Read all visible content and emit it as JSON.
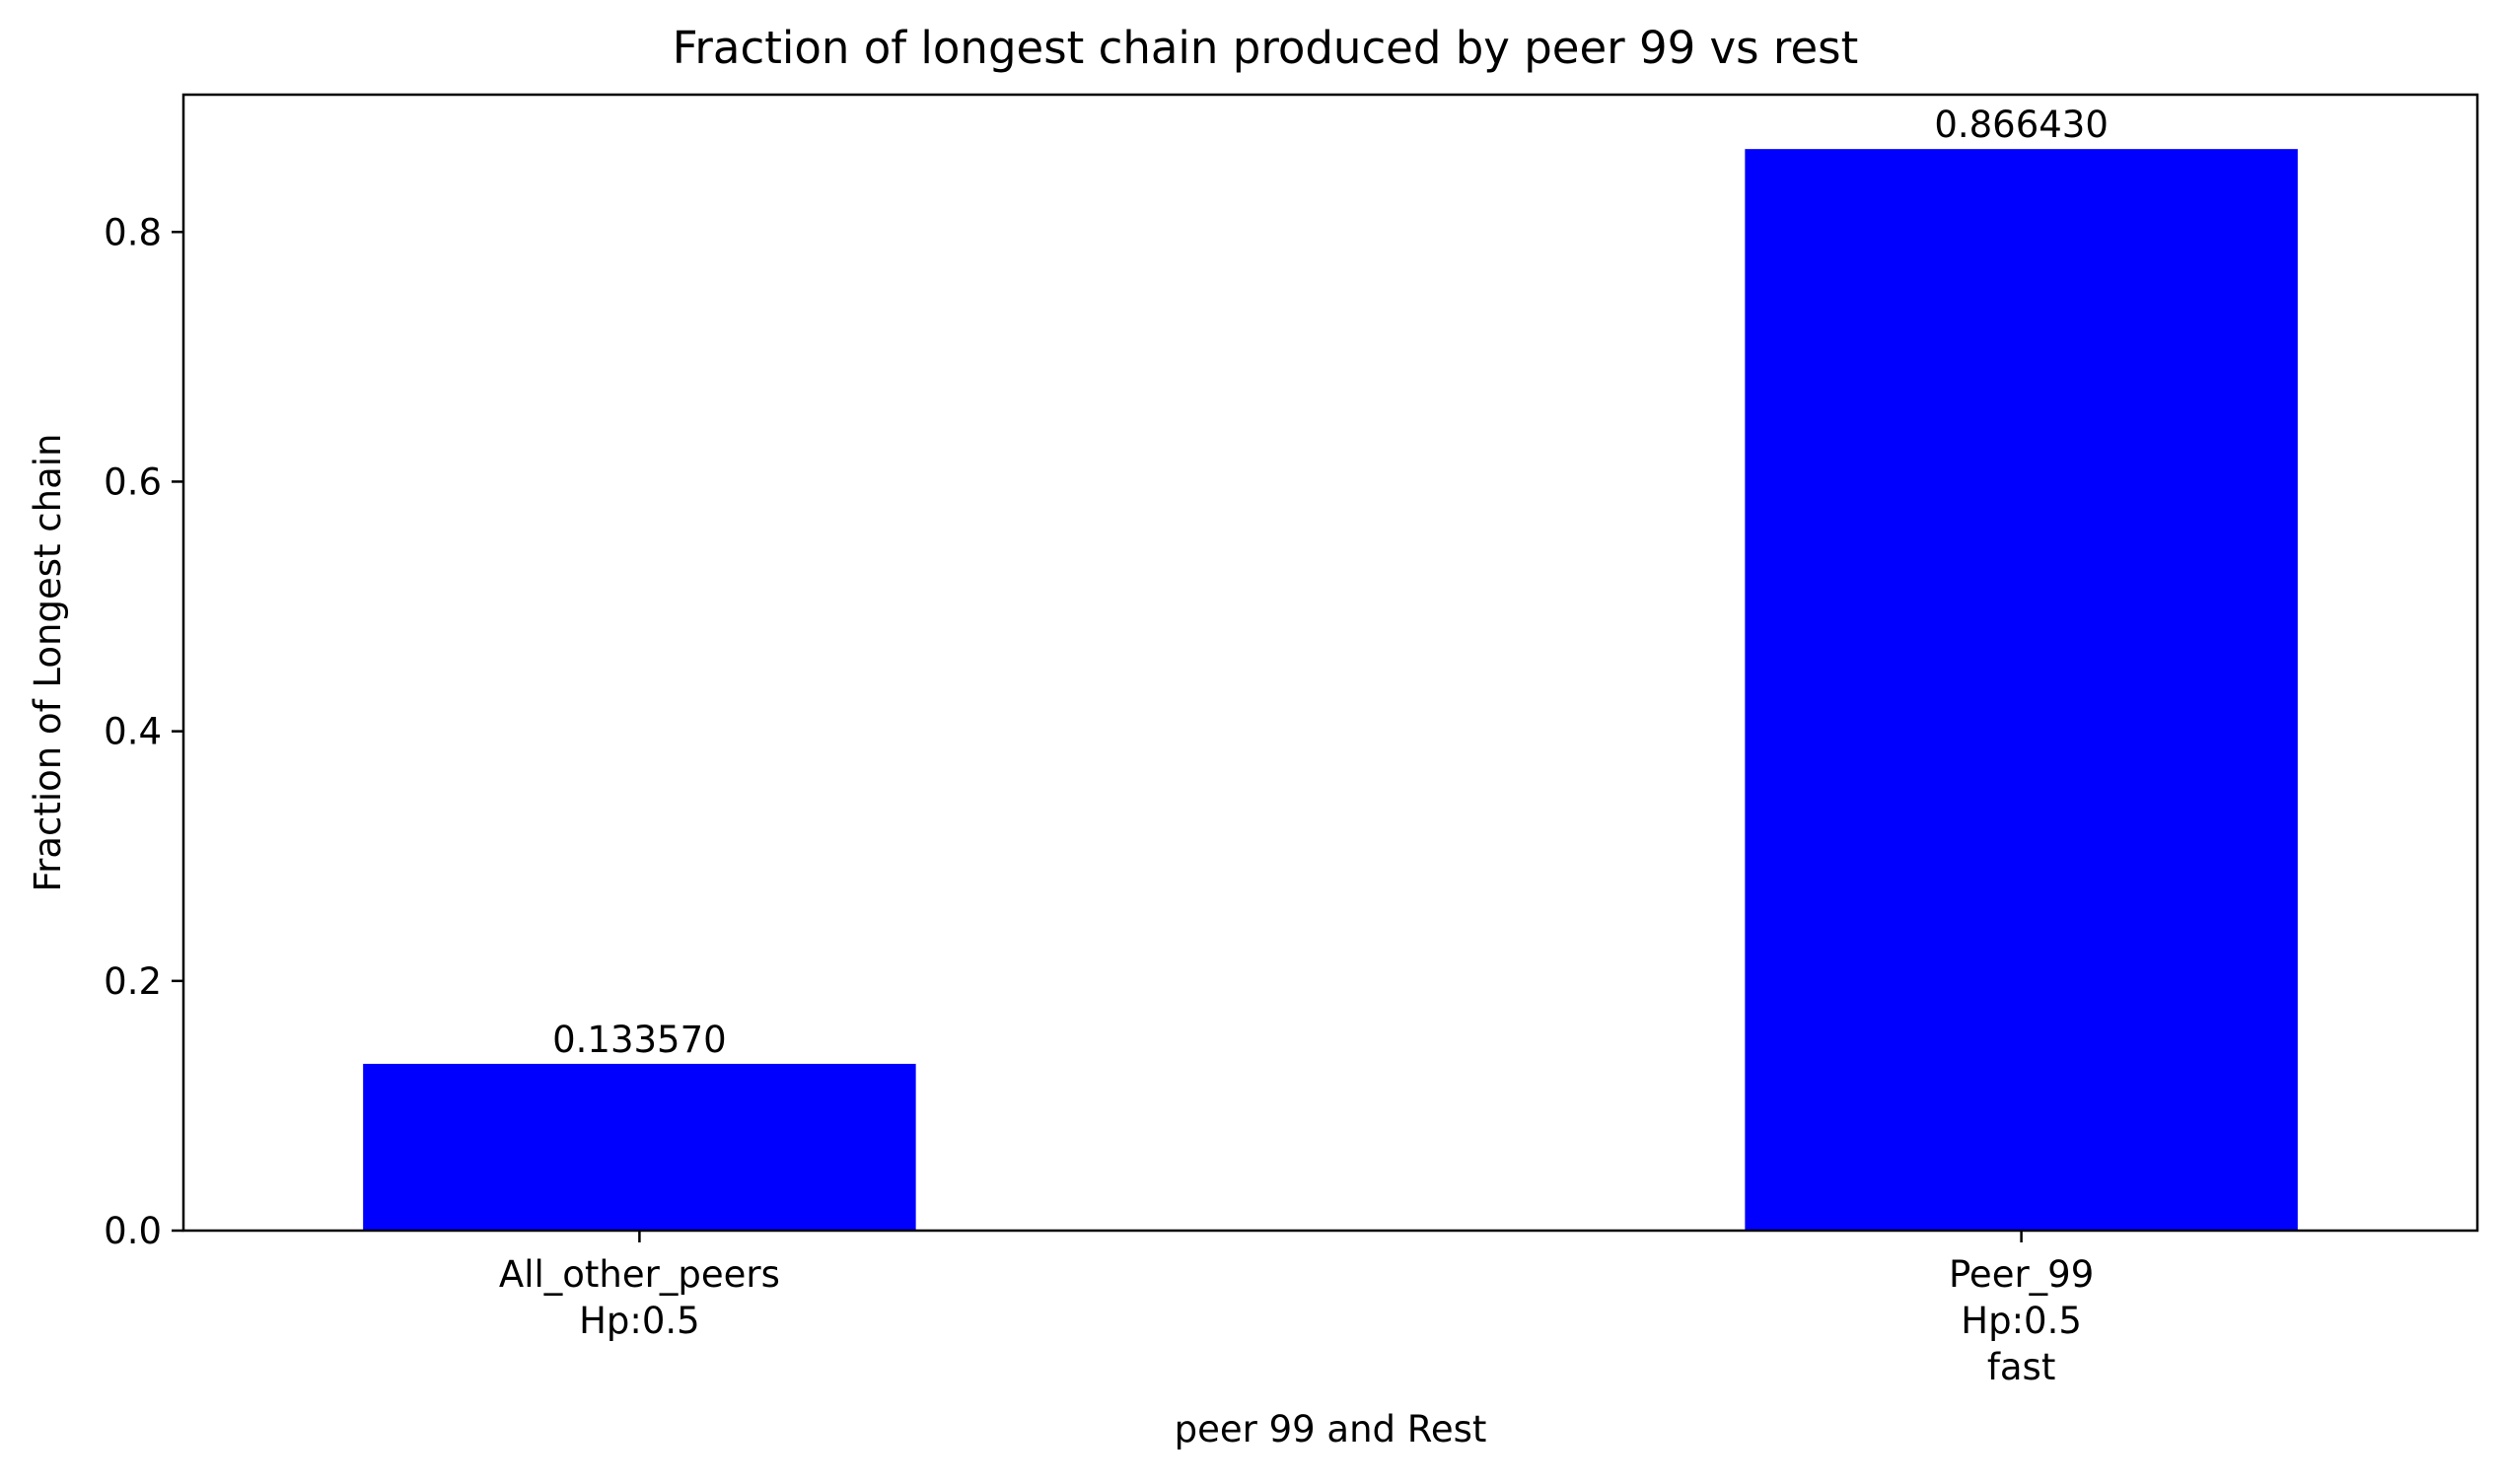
{
  "chart_data": {
    "type": "bar",
    "title": "Fraction of longest chain produced by peer 99 vs rest",
    "xlabel": "peer 99 and Rest",
    "ylabel": "Fraction of Longest chain",
    "categories": [
      [
        "All_other_peers",
        "Hp:0.5"
      ],
      [
        "Peer_99",
        "Hp:0.5",
        "fast"
      ]
    ],
    "values": [
      0.13357,
      0.86643
    ],
    "value_labels": [
      "0.133570",
      "0.866430"
    ],
    "ylim": [
      0,
      0.91
    ],
    "yticks": [
      0.0,
      0.2,
      0.4,
      0.6,
      0.8
    ],
    "ytick_labels": [
      "0.0",
      "0.2",
      "0.4",
      "0.6",
      "0.8"
    ],
    "bar_color": "#0000ff",
    "grid": false,
    "legend": "none"
  }
}
